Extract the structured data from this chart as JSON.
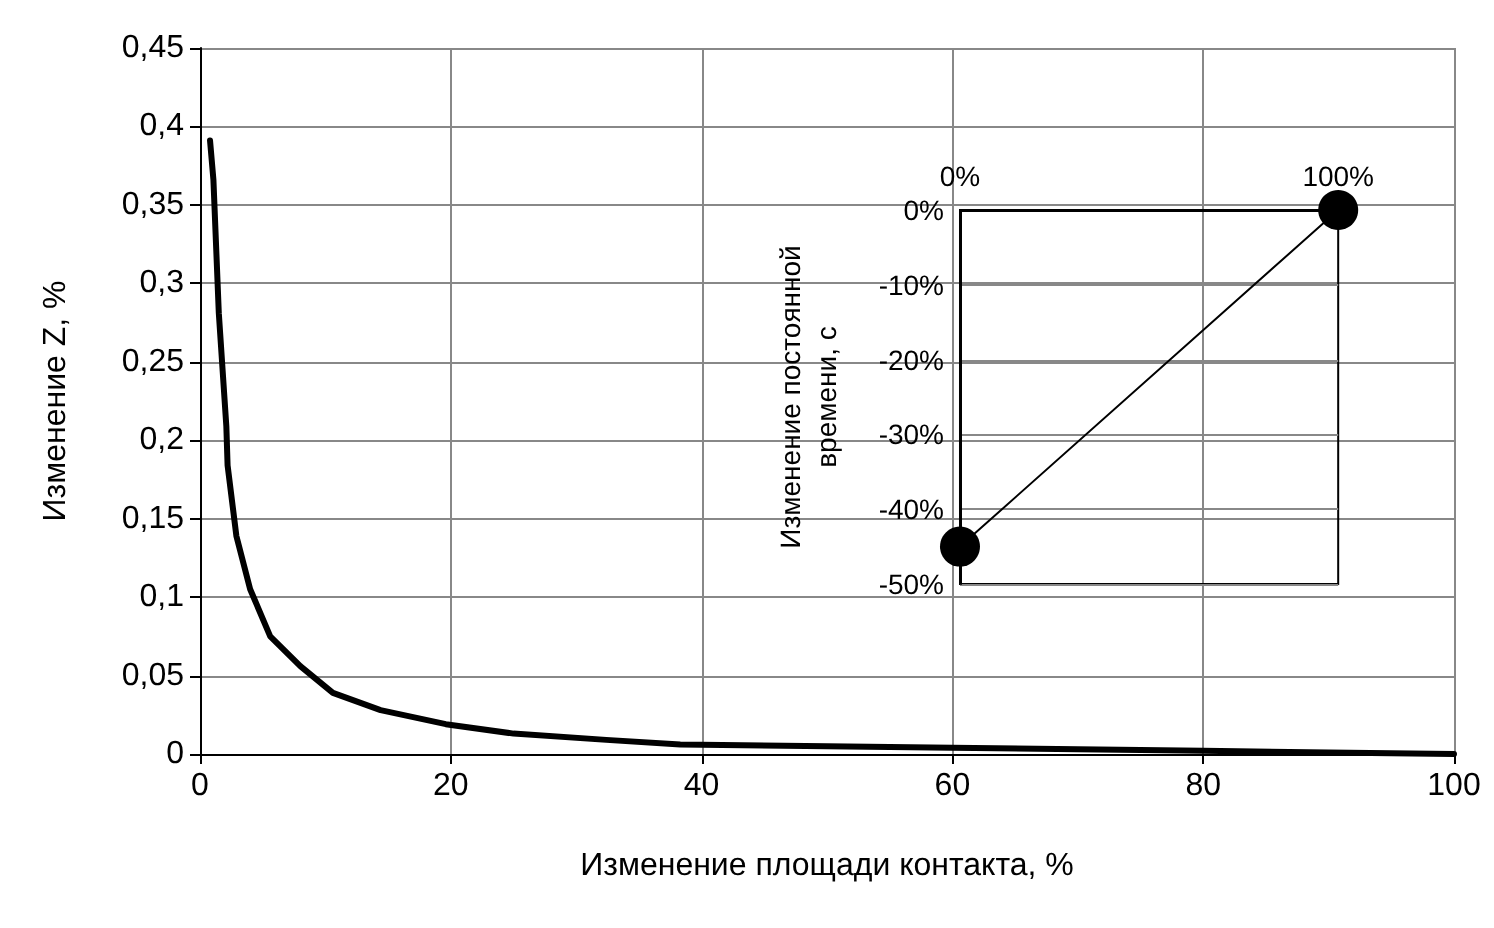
{
  "chart_data": [
    {
      "type": "line",
      "xlabel": "Изменение площади контакта, %",
      "ylabel": "Изменение Z, %",
      "series": [
        {
          "color": "#000000",
          "x": [
            0.8,
            1.07,
            1.5,
            2.1,
            2.2,
            2.9,
            4.0,
            5.6,
            8.0,
            10.6,
            14.4,
            19.6,
            25,
            32.4,
            38.3,
            50,
            60,
            70,
            80,
            90,
            100
          ],
          "values": [
            0.391,
            0.366,
            0.281,
            0.209,
            0.184,
            0.139,
            0.105,
            0.075,
            0.056,
            0.039,
            0.028,
            0.019,
            0.013,
            0.009,
            0.006,
            0.005,
            0.004,
            0.003,
            0.002,
            0.001,
            0
          ]
        }
      ],
      "xlim": [
        0,
        100
      ],
      "xticks": [
        0,
        20,
        40,
        60,
        80,
        100
      ],
      "ylim": [
        0,
        0.45
      ],
      "yticks": [
        0,
        {
          "value": 0.05,
          "label": "0,05"
        },
        {
          "value": 0.1,
          "label": "0,1"
        },
        {
          "value": 0.15,
          "label": "0,15"
        },
        {
          "value": 0.2,
          "label": "0,2"
        },
        {
          "value": 0.25,
          "label": "0,25"
        },
        {
          "value": 0.3,
          "label": "0,3"
        },
        {
          "value": 0.35,
          "label": "0,35"
        },
        {
          "value": 0.4,
          "label": "0,4"
        },
        {
          "value": 0.45,
          "label": "0,45"
        }
      ],
      "grid": true,
      "marker": "none",
      "line_style": "solid"
    },
    {
      "type": "line",
      "ylabel": "Изменение постоянной времени, с",
      "series": [
        {
          "color": "#000000",
          "x": [
            0,
            100
          ],
          "values": [
            -45,
            0
          ]
        }
      ],
      "xlim": [
        0,
        100
      ],
      "xticks": [
        {
          "value": 0,
          "label": "0%"
        },
        {
          "value": 100,
          "label": "100%"
        }
      ],
      "ylim": [
        -50,
        0
      ],
      "yticks": [
        {
          "value": -50,
          "label": "-50%"
        },
        {
          "value": -40,
          "label": "-40%"
        },
        {
          "value": -30,
          "label": "-30%"
        },
        {
          "value": -20,
          "label": "-20%"
        },
        {
          "value": -10,
          "label": "-10%"
        },
        {
          "value": 0,
          "label": "0%"
        }
      ],
      "grid": "y",
      "marker": "circle",
      "line_style": "solid"
    }
  ]
}
